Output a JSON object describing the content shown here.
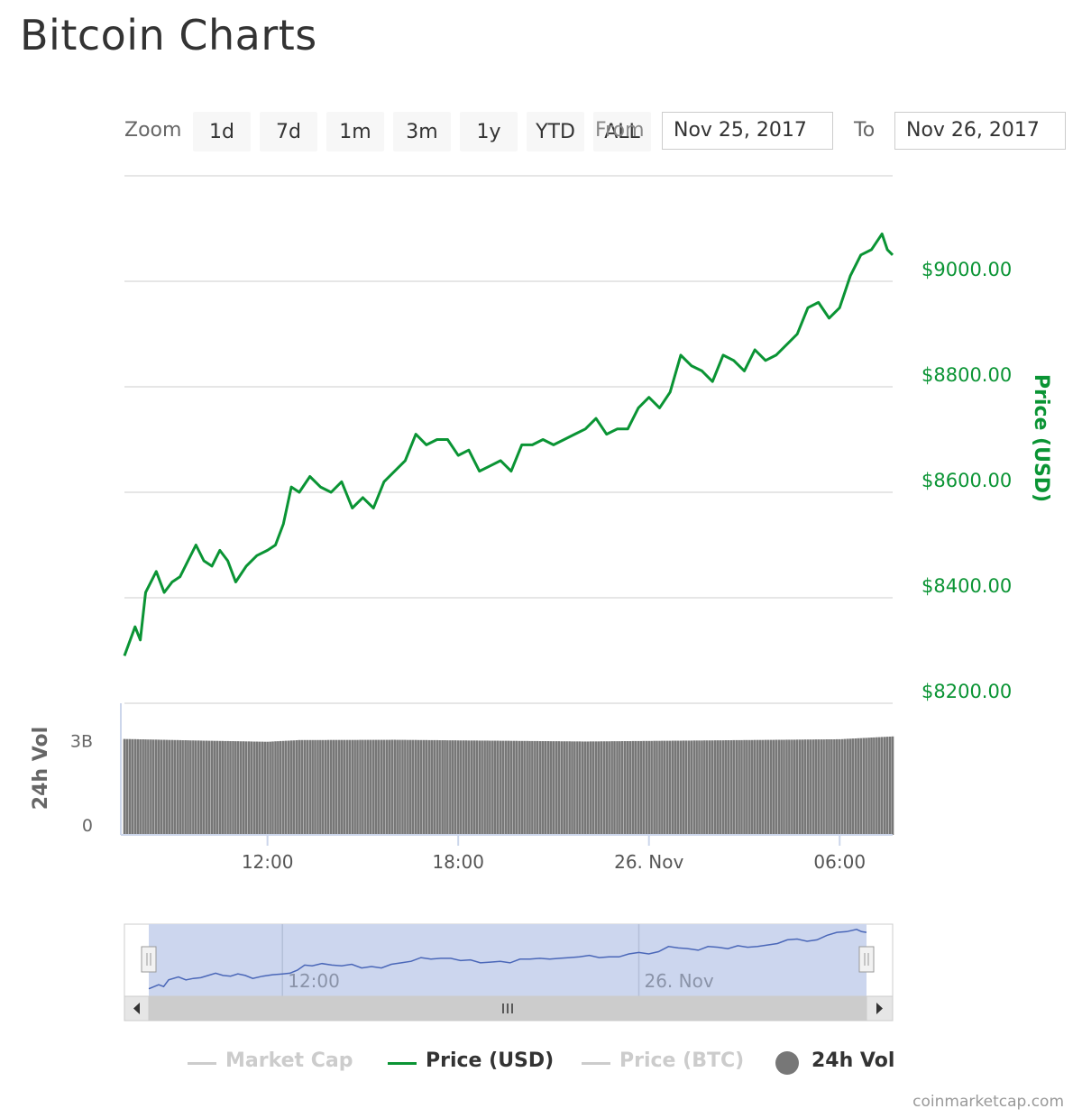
{
  "page": {
    "title": "Bitcoin Charts"
  },
  "controls": {
    "zoom_label": "Zoom",
    "zoom_buttons": [
      "1d",
      "7d",
      "1m",
      "3m",
      "1y",
      "YTD",
      "ALL"
    ],
    "active_zoom": "1d",
    "from_label": "From",
    "from_date": "Nov 25, 2017",
    "to_label": "To",
    "to_date": "Nov 26, 2017"
  },
  "colors": {
    "price": "#0a9434",
    "volume": "#777777",
    "navigator_line": "#4a67b8",
    "navigator_fill": "#ccd6ee",
    "hidden_legend": "#cccccc",
    "grid": "#e6e6e6"
  },
  "legend": [
    {
      "name": "Market Cap",
      "visible": false,
      "marker": "line"
    },
    {
      "name": "Price (USD)",
      "visible": true,
      "marker": "line"
    },
    {
      "name": "Price (BTC)",
      "visible": false,
      "marker": "line"
    },
    {
      "name": "24h Vol",
      "visible": true,
      "marker": "dot"
    }
  ],
  "credits": "coinmarketcap.com",
  "chart_data": {
    "type": "line",
    "title": "",
    "x_range": [
      "2017-11-25 07:30",
      "2017-11-26 07:40"
    ],
    "x_ticks": [
      "12:00",
      "18:00",
      "26. Nov",
      "06:00"
    ],
    "x_tick_times": [
      "2017-11-25 12:00",
      "2017-11-25 18:00",
      "2017-11-26 00:00",
      "2017-11-26 06:00"
    ],
    "grid": true,
    "legend_position": "bottom",
    "price_axis": {
      "label": "Price (USD)",
      "ticks": [
        "$8200.00",
        "$8400.00",
        "$8600.00",
        "$8800.00",
        "$9000.00"
      ],
      "tick_values": [
        8200,
        8400,
        8600,
        8800,
        9000
      ],
      "ylim": [
        8200,
        9200
      ]
    },
    "volume_axis": {
      "label": "24h Vol",
      "ticks": [
        "0",
        "3B"
      ],
      "tick_values": [
        0,
        3000000000
      ],
      "ylim": [
        0,
        4500000000
      ]
    },
    "series": [
      {
        "name": "Price (USD)",
        "type": "line",
        "x": [
          "2017-11-25 07:30",
          "2017-11-25 07:50",
          "2017-11-25 08:00",
          "2017-11-25 08:10",
          "2017-11-25 08:30",
          "2017-11-25 08:45",
          "2017-11-25 09:00",
          "2017-11-25 09:15",
          "2017-11-25 09:30",
          "2017-11-25 09:45",
          "2017-11-25 10:00",
          "2017-11-25 10:15",
          "2017-11-25 10:30",
          "2017-11-25 10:45",
          "2017-11-25 11:00",
          "2017-11-25 11:20",
          "2017-11-25 11:40",
          "2017-11-25 12:00",
          "2017-11-25 12:15",
          "2017-11-25 12:30",
          "2017-11-25 12:45",
          "2017-11-25 13:00",
          "2017-11-25 13:20",
          "2017-11-25 13:40",
          "2017-11-25 14:00",
          "2017-11-25 14:20",
          "2017-11-25 14:40",
          "2017-11-25 15:00",
          "2017-11-25 15:20",
          "2017-11-25 15:40",
          "2017-11-25 16:00",
          "2017-11-25 16:20",
          "2017-11-25 16:40",
          "2017-11-25 17:00",
          "2017-11-25 17:20",
          "2017-11-25 17:40",
          "2017-11-25 18:00",
          "2017-11-25 18:20",
          "2017-11-25 18:40",
          "2017-11-25 19:00",
          "2017-11-25 19:20",
          "2017-11-25 19:40",
          "2017-11-25 20:00",
          "2017-11-25 20:20",
          "2017-11-25 20:40",
          "2017-11-25 21:00",
          "2017-11-25 21:20",
          "2017-11-25 21:40",
          "2017-11-25 22:00",
          "2017-11-25 22:20",
          "2017-11-25 22:40",
          "2017-11-25 23:00",
          "2017-11-25 23:20",
          "2017-11-25 23:40",
          "2017-11-26 00:00",
          "2017-11-26 00:20",
          "2017-11-26 00:40",
          "2017-11-26 01:00",
          "2017-11-26 01:20",
          "2017-11-26 01:40",
          "2017-11-26 02:00",
          "2017-11-26 02:20",
          "2017-11-26 02:40",
          "2017-11-26 03:00",
          "2017-11-26 03:20",
          "2017-11-26 03:40",
          "2017-11-26 04:00",
          "2017-11-26 04:20",
          "2017-11-26 04:40",
          "2017-11-26 05:00",
          "2017-11-26 05:20",
          "2017-11-26 05:40",
          "2017-11-26 06:00",
          "2017-11-26 06:20",
          "2017-11-26 06:40",
          "2017-11-26 07:00",
          "2017-11-26 07:20",
          "2017-11-26 07:30",
          "2017-11-26 07:40"
        ],
        "values": [
          8290,
          8345,
          8320,
          8410,
          8450,
          8410,
          8430,
          8440,
          8470,
          8500,
          8470,
          8460,
          8490,
          8470,
          8430,
          8460,
          8480,
          8490,
          8500,
          8540,
          8610,
          8600,
          8630,
          8610,
          8600,
          8620,
          8570,
          8590,
          8570,
          8620,
          8640,
          8660,
          8710,
          8690,
          8700,
          8700,
          8670,
          8680,
          8640,
          8650,
          8660,
          8640,
          8690,
          8690,
          8700,
          8690,
          8700,
          8710,
          8720,
          8740,
          8710,
          8720,
          8720,
          8760,
          8780,
          8760,
          8790,
          8860,
          8840,
          8830,
          8810,
          8860,
          8850,
          8830,
          8870,
          8850,
          8860,
          8880,
          8900,
          8950,
          8960,
          8930,
          8950,
          9010,
          9050,
          9060,
          9090,
          9060,
          9050
        ]
      },
      {
        "name": "24h Vol",
        "type": "bar",
        "x": [
          "2017-11-25 07:30",
          "2017-11-25 10:00",
          "2017-11-25 12:00",
          "2017-11-25 13:00",
          "2017-11-25 16:00",
          "2017-11-25 19:00",
          "2017-11-25 22:00",
          "2017-11-26 00:00",
          "2017-11-26 03:00",
          "2017-11-26 06:00",
          "2017-11-26 07:40"
        ],
        "values": [
          3420000000,
          3360000000,
          3320000000,
          3380000000,
          3390000000,
          3360000000,
          3330000000,
          3350000000,
          3380000000,
          3410000000,
          3510000000
        ]
      }
    ],
    "navigator": {
      "x_ticks": [
        "12:00",
        "26. Nov"
      ],
      "x_tick_times": [
        "2017-11-25 12:00",
        "2017-11-26 00:00"
      ]
    }
  }
}
